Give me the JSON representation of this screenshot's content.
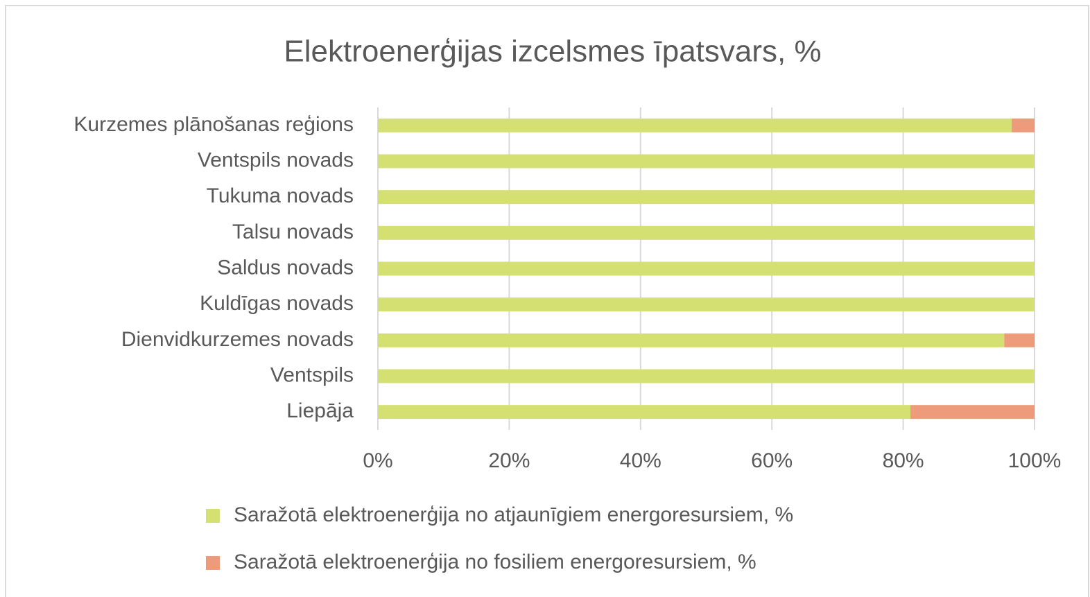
{
  "chart_data": {
    "type": "stacked-barh",
    "title": "Elektroenerģijas izcelsmes īpatsvars, %",
    "categories": [
      "Kurzemes plānošanas reģions",
      "Ventspils novads",
      "Tukuma novads",
      "Talsu novads",
      "Saldus novads",
      "Kuldīgas novads",
      "Dienvidkurzemes novads",
      "Ventspils",
      "Liepāja"
    ],
    "series": [
      {
        "name": "Saražotā elektroenerģija no atjaunīgiem energoresursiem, %",
        "color": "#d4e071",
        "values": [
          96.5,
          100,
          100,
          100,
          100,
          100,
          95.4,
          100,
          81.1
        ]
      },
      {
        "name": "Saražotā elektroenerģija no fosiliem energoresursiem, %",
        "color": "#ee9b7c",
        "values": [
          3.5,
          0,
          0,
          0,
          0,
          0,
          4.6,
          0,
          18.9
        ]
      }
    ],
    "xlim": [
      0,
      100
    ],
    "xticks": [
      {
        "value": 0,
        "label": "0%"
      },
      {
        "value": 20,
        "label": "20%"
      },
      {
        "value": 40,
        "label": "40%"
      },
      {
        "value": 60,
        "label": "60%"
      },
      {
        "value": 80,
        "label": "80%"
      },
      {
        "value": 100,
        "label": "100%"
      }
    ],
    "grid": true,
    "legend": "bottom"
  }
}
